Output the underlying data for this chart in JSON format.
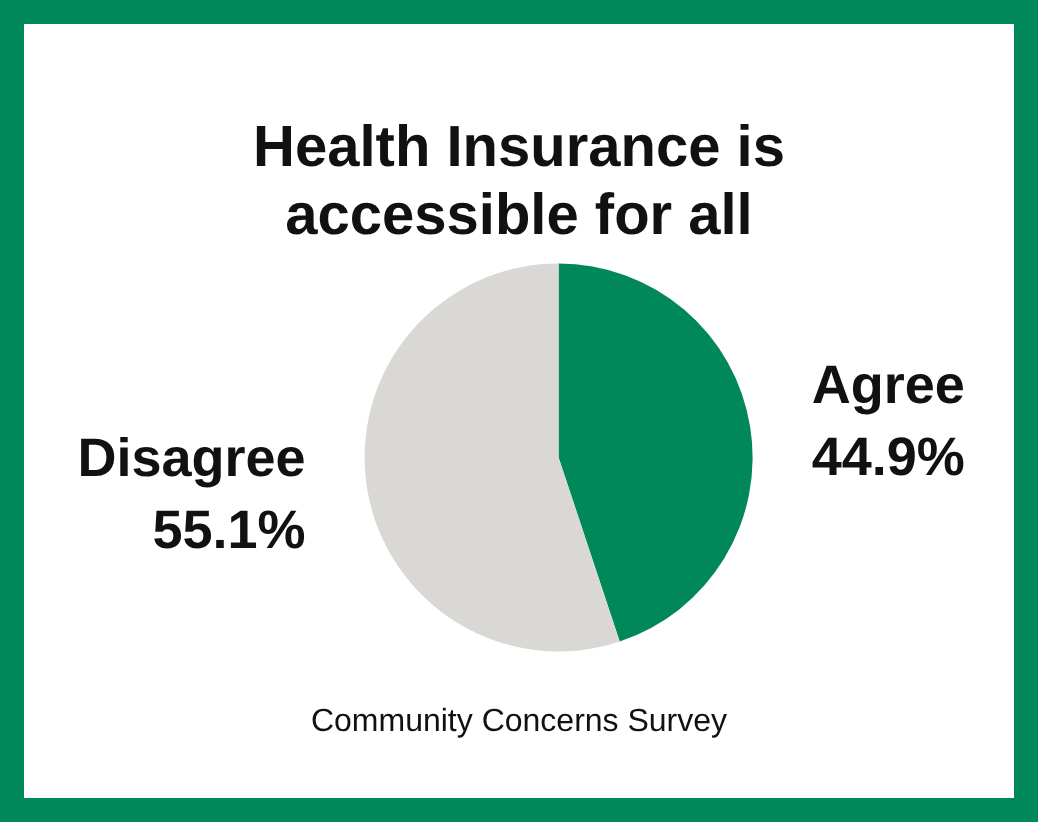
{
  "chart_data": {
    "type": "pie",
    "title": "Health Insurance is\naccessible for all",
    "categories": [
      "Agree",
      "Disagree"
    ],
    "values": [
      44.9,
      55.1
    ],
    "colors": [
      "#00875a",
      "#d9d8d5"
    ],
    "value_labels": [
      "44.9%",
      "55.1%"
    ],
    "annotations": [
      "Community Concerns Survey"
    ],
    "legend": false
  }
}
